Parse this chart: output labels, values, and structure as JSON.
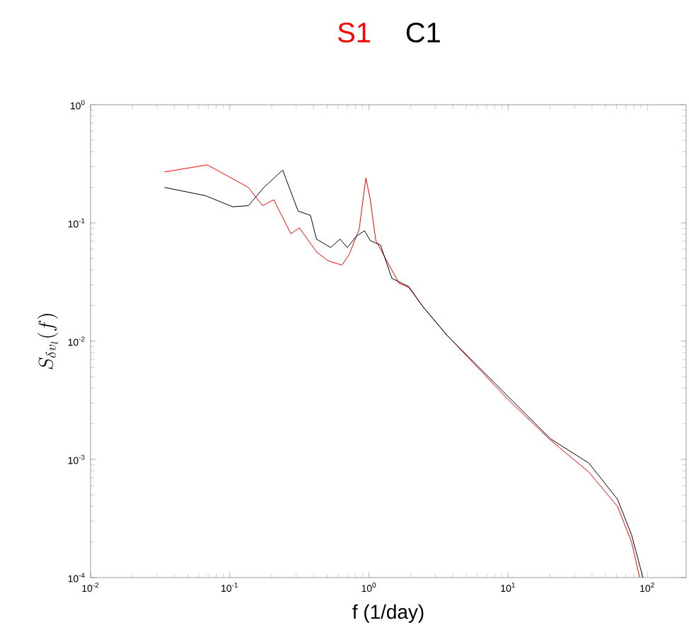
{
  "chart_data": {
    "type": "line",
    "xlabel": "f (1/day)",
    "ylabel": "S_{\\delta v_l}(f)",
    "log": "xy",
    "legend": "top",
    "xlim": [
      0.01,
      190
    ],
    "ylim": [
      0.0001,
      1
    ],
    "xticks": [
      {
        "value": 0.01,
        "label": "10$^{-2}$"
      },
      {
        "value": 0.1,
        "label": "10$^{-1}$"
      },
      {
        "value": 1,
        "label": "10$^{0}$"
      },
      {
        "value": 10,
        "label": "10$^{1}$"
      },
      {
        "value": 100,
        "label": "10$^{2}$"
      }
    ],
    "yticks": [
      {
        "value": 0.0001,
        "label": "10$^{-4}$"
      },
      {
        "value": 0.001,
        "label": "10$^{-3}$"
      },
      {
        "value": 0.01,
        "label": "10$^{-2}$"
      },
      {
        "value": 0.1,
        "label": "10$^{-1}$"
      },
      {
        "value": 1,
        "label": "10$^{0}$"
      }
    ],
    "series": [
      {
        "name": "S1",
        "color": "#ff0000",
        "x": [
          0.034,
          0.069,
          0.136,
          0.172,
          0.207,
          0.275,
          0.316,
          0.42,
          0.506,
          0.64,
          0.72,
          0.85,
          0.95,
          1.02,
          1.12,
          1.64,
          1.93,
          2.45,
          3.64,
          10,
          20.2,
          38,
          61,
          77,
          88
        ],
        "values": [
          0.27,
          0.31,
          0.2,
          0.14,
          0.157,
          0.081,
          0.091,
          0.057,
          0.048,
          0.044,
          0.054,
          0.088,
          0.24,
          0.16,
          0.071,
          0.031,
          0.0285,
          0.0195,
          0.0112,
          0.0032,
          0.00145,
          0.00078,
          0.0004,
          0.0002,
          0.0001
        ]
      },
      {
        "name": "C1",
        "color": "#000000",
        "x": [
          0.034,
          0.067,
          0.105,
          0.136,
          0.176,
          0.24,
          0.31,
          0.38,
          0.42,
          0.53,
          0.62,
          0.7,
          0.81,
          0.93,
          1.02,
          1.21,
          1.46,
          1.93,
          2.45,
          3.64,
          10,
          20.2,
          38,
          61,
          77,
          93
        ],
        "values": [
          0.2,
          0.17,
          0.137,
          0.14,
          0.2,
          0.28,
          0.126,
          0.116,
          0.073,
          0.062,
          0.073,
          0.062,
          0.077,
          0.086,
          0.071,
          0.065,
          0.034,
          0.029,
          0.0195,
          0.0112,
          0.0034,
          0.00149,
          0.00093,
          0.00046,
          0.00023,
          0.0001
        ]
      }
    ]
  }
}
